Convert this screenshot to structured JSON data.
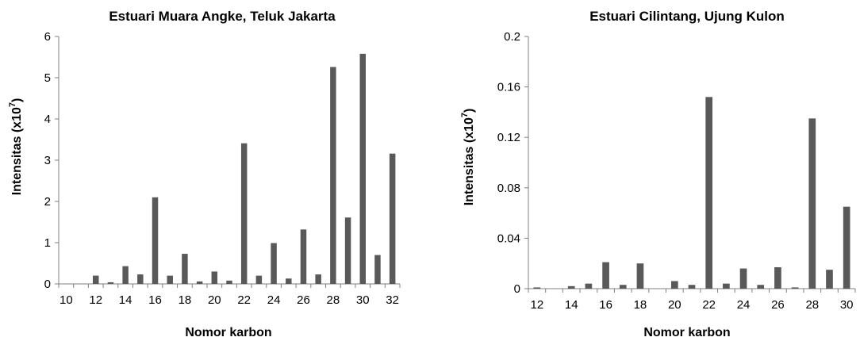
{
  "chart_data": [
    {
      "type": "bar",
      "title": "Estuari Muara Angke, Teluk Jakarta",
      "xlabel": "Nomor karbon",
      "ylabel_main": "Intensitas (x10",
      "ylabel_sup": "7",
      "ylabel_tail": ")",
      "categories": [
        "10",
        "11",
        "12",
        "13",
        "14",
        "15",
        "16",
        "17",
        "18",
        "19",
        "20",
        "21",
        "22",
        "23",
        "24",
        "25",
        "26",
        "27",
        "28",
        "29",
        "30",
        "31",
        "32"
      ],
      "values": [
        0,
        0,
        0.2,
        0.04,
        0.43,
        0.23,
        2.1,
        0.2,
        0.73,
        0.06,
        0.3,
        0.08,
        3.41,
        0.2,
        0.99,
        0.13,
        1.32,
        0.23,
        5.26,
        1.61,
        5.58,
        0.7,
        3.16
      ],
      "xtick_labels": [
        "10",
        "12",
        "14",
        "16",
        "18",
        "20",
        "22",
        "24",
        "26",
        "28",
        "30",
        "32"
      ],
      "ytick_labels": [
        "0",
        "1",
        "2",
        "3",
        "4",
        "5",
        "6"
      ],
      "ylim": [
        0,
        6
      ],
      "bar_color": "#595959"
    },
    {
      "type": "bar",
      "title": "Estuari Cilintang, Ujung Kulon",
      "xlabel": "Nomor karbon",
      "ylabel_main": "Intensitas (x10",
      "ylabel_sup": "7",
      "ylabel_tail": ")",
      "categories": [
        "12",
        "13",
        "14",
        "15",
        "16",
        "17",
        "18",
        "19",
        "20",
        "21",
        "22",
        "23",
        "24",
        "25",
        "26",
        "27",
        "28",
        "29",
        "30"
      ],
      "values": [
        0.001,
        0,
        0.002,
        0.004,
        0.021,
        0.003,
        0.02,
        0,
        0.006,
        0.003,
        0.152,
        0.004,
        0.016,
        0.003,
        0.017,
        0.001,
        0.135,
        0.015,
        0.065
      ],
      "xtick_labels": [
        "12",
        "14",
        "16",
        "18",
        "20",
        "22",
        "24",
        "26",
        "28",
        "30"
      ],
      "ytick_labels": [
        "0",
        "0.04",
        "0.08",
        "0.12",
        "0.16",
        "0.2"
      ],
      "ylim": [
        0,
        0.2
      ],
      "bar_color": "#595959"
    }
  ]
}
